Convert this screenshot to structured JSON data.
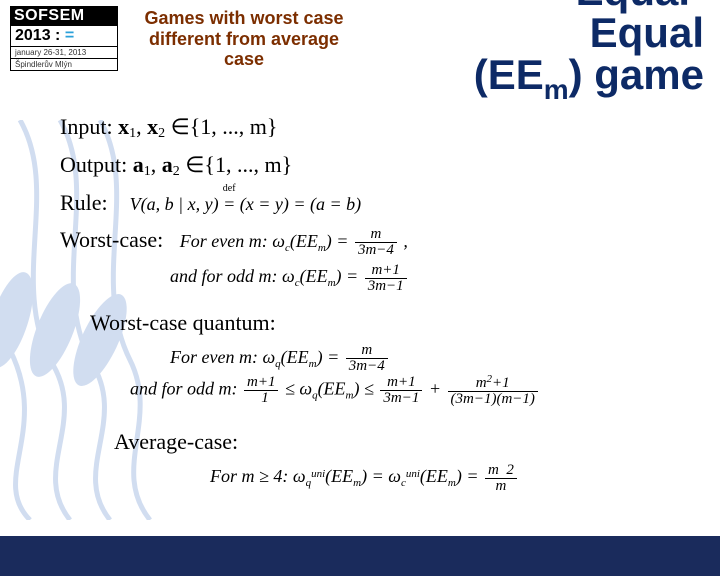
{
  "logo": {
    "name": "SOFSEM",
    "year_line": "2013 : =",
    "dates": "january 26-31, 2013",
    "place": "Špindlerův Mlýn"
  },
  "title_left": {
    "l1": "Games with worst case",
    "l2": "different from average",
    "l3": "case"
  },
  "title_right": {
    "l1": "Equal-",
    "l2": "Equal",
    "l3_pre": "(EE",
    "l3_sub": "m",
    "l3_post": ") game"
  },
  "body": {
    "input_label": "Input:  ",
    "input_expr_html": "<b>x</b><span class=\"math-sub\">1</span>, <b>x</b><span class=\"math-sub\">2</span> ∈{1, ..., m}",
    "output_label": "Output:  ",
    "output_expr_html": "<b>a</b><span class=\"math-sub\">1</span>, <b>a</b><span class=\"math-sub\">2</span> ∈{1, ..., m}",
    "rule_label": "Rule:",
    "rule_formula_html": "V(a, b | x, y) <span class=\"def-eq\"><span class=\"def-lbl\">def</span>=</span> (x = y) = (a = b)",
    "worst_label": "Worst-case:",
    "worst_even_html": "For even m: ω<span class=\"small-sub\">c</span>(EE<span class=\"small-sub\">m</span>) = <span class=\"frac\"><span class=\"n\">m</span><span class=\"d\">3m−4</span></span> ,",
    "worst_odd_html": "and for odd m: ω<span class=\"small-sub\">c</span>(EE<span class=\"small-sub\">m</span>) = <span class=\"frac\"><span class=\"n\">m+1</span><span class=\"d\">3m−1</span></span>",
    "worstq_label": "Worst-case quantum:",
    "worstq_even_html": "For even m: ω<span class=\"small-sub\">q</span>(EE<span class=\"small-sub\">m</span>) = <span class=\"frac\"><span class=\"n\">m</span><span class=\"d\">3m−4</span></span>",
    "worstq_odd_html": "and for odd m: <span class=\"frac\"><span class=\"n\">m+1</span><span class=\"d\">&nbsp;&nbsp;1</span></span> ≤ ω<span class=\"small-sub\">q</span>(EE<span class=\"small-sub\">m</span>) ≤ <span class=\"frac\"><span class=\"n\">m+1</span><span class=\"d\">3m−1</span></span> + <span class=\"frac\"><span class=\"n\">m<span class=\"small-sup\">2</span>+1</span><span class=\"d\">(3m−1)(m−1)</span></span>",
    "avg_label": "Average-case:",
    "avg_formula_html": "For m ≥ 4: ω<span class=\"small-sub\">q</span><span class=\"small-sup\">uni</span>(EE<span class=\"small-sub\">m</span>) = ω<span class=\"small-sub\">c</span><span class=\"small-sup\">uni</span>(EE<span class=\"small-sub\">m</span>) = <span class=\"frac\"><span class=\"n\">m&nbsp;&nbsp;2</span><span class=\"d\">m</span></span>"
  },
  "colors": {
    "title_left": "#7c2e00",
    "title_right": "#0d2a66",
    "bottom_bar": "#1a2b5c",
    "bg_stroke": "#9ab4e0"
  }
}
